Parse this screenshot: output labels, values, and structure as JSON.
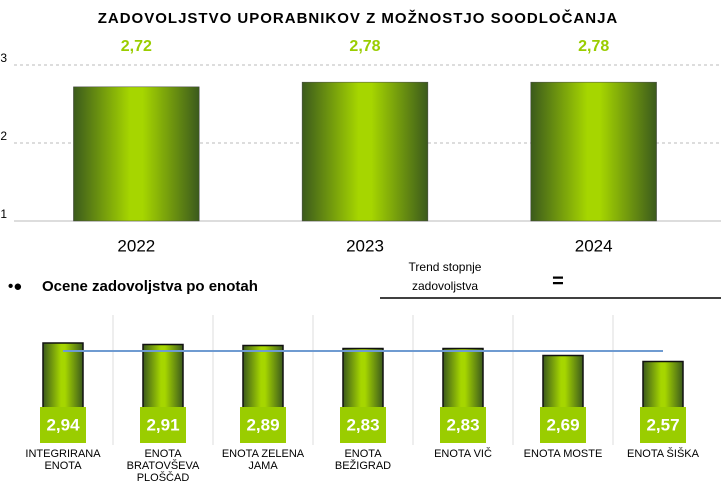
{
  "chart_data": [
    {
      "type": "bar",
      "title": "ZADOVOLJSTVO UPORABNIKOV Z MOŽNOSTJO SOODLOČANJA",
      "categories": [
        "2022",
        "2023",
        "2024"
      ],
      "values": [
        2.72,
        2.78,
        2.78
      ],
      "value_labels": [
        "2,72",
        "2,78",
        "2,78"
      ],
      "ylim": [
        1,
        3
      ],
      "yticks": [
        1,
        2,
        3
      ],
      "grid": true,
      "color": "#9acd00"
    },
    {
      "type": "bar",
      "categories": [
        "INTEGRIRANA ENOTA",
        "ENOTA BRATOVŠEVA PLOŠČAD",
        "ENOTA ZELENA JAMA",
        "ENOTA BEŽIGRAD",
        "ENOTA VIČ",
        "ENOTA MOSTE",
        "ENOTA ŠIŠKA"
      ],
      "values": [
        2.94,
        2.91,
        2.89,
        2.83,
        2.83,
        2.69,
        2.57
      ],
      "value_labels": [
        "2,94",
        "2,91",
        "2,89",
        "2,83",
        "2,83",
        "2,69",
        "2,57"
      ],
      "ylim": [
        1,
        3
      ],
      "reference_value": 2.78,
      "reference_color": "#6f9bd1",
      "color": "#9acd00"
    }
  ],
  "section_heading": "Ocene zadovoljstva po enotah",
  "trend_label": "Trend stopnje zadovoljstva",
  "trend_symbol": "="
}
